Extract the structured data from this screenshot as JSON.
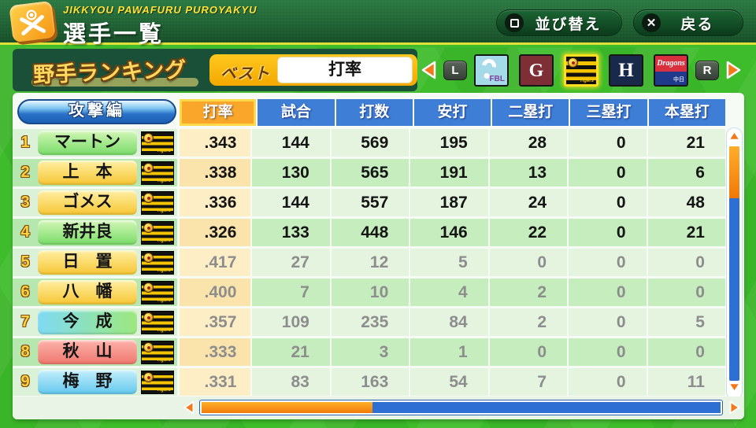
{
  "header": {
    "subtitle": "JIKKYOU PAWAFURU PUROYAKYU",
    "title": "選手一覧",
    "sort_label": "並び替え",
    "back_label": "戻る"
  },
  "toolbar": {
    "ranking_title": "野手ランキング",
    "best_label": "ベスト",
    "selected_stat": "打率",
    "left_bumper": "L",
    "right_bumper": "R",
    "teams": [
      {
        "id": "fbl",
        "label": "FBL",
        "selected": false
      },
      {
        "id": "giants",
        "label": "G",
        "selected": false
      },
      {
        "id": "tigers",
        "label": "Tigers",
        "selected": true
      },
      {
        "id": "hawks",
        "label": "H",
        "selected": false
      },
      {
        "id": "dragons",
        "label": "Dragons",
        "sub": "中日",
        "selected": false
      }
    ]
  },
  "table": {
    "section_label": "攻撃編",
    "columns": [
      "打率",
      "試合",
      "打数",
      "安打",
      "二塁打",
      "三塁打",
      "本塁打"
    ],
    "selected_column": "打率",
    "rows": [
      {
        "rank": "1",
        "name": "マートン",
        "name_color": "green",
        "qualified": true,
        "stats": [
          ".343",
          "144",
          "569",
          "195",
          "28",
          "0",
          "21"
        ]
      },
      {
        "rank": "2",
        "name": "上　本",
        "name_color": "yellow",
        "qualified": true,
        "stats": [
          ".338",
          "130",
          "565",
          "191",
          "13",
          "0",
          "6"
        ]
      },
      {
        "rank": "3",
        "name": "ゴメス",
        "name_color": "yellow",
        "qualified": true,
        "stats": [
          ".336",
          "144",
          "557",
          "187",
          "24",
          "0",
          "48"
        ]
      },
      {
        "rank": "4",
        "name": "新井良",
        "name_color": "green",
        "qualified": true,
        "stats": [
          ".326",
          "133",
          "448",
          "146",
          "22",
          "0",
          "21"
        ]
      },
      {
        "rank": "5",
        "name": "日　置",
        "name_color": "yellow",
        "qualified": false,
        "stats": [
          ".417",
          "27",
          "12",
          "5",
          "0",
          "0",
          "0"
        ]
      },
      {
        "rank": "6",
        "name": "八　幡",
        "name_color": "yellow",
        "qualified": false,
        "stats": [
          ".400",
          "7",
          "10",
          "4",
          "2",
          "0",
          "0"
        ]
      },
      {
        "rank": "7",
        "name": "今　成",
        "name_color": "cyangreen",
        "qualified": false,
        "stats": [
          ".357",
          "109",
          "235",
          "84",
          "2",
          "0",
          "5"
        ]
      },
      {
        "rank": "8",
        "name": "秋　山",
        "name_color": "red",
        "qualified": false,
        "stats": [
          ".333",
          "21",
          "3",
          "1",
          "0",
          "0",
          "0"
        ]
      },
      {
        "rank": "9",
        "name": "梅　野",
        "name_color": "cyan",
        "qualified": false,
        "stats": [
          ".331",
          "83",
          "163",
          "54",
          "7",
          "0",
          "11"
        ]
      }
    ]
  },
  "scrollbars": {
    "vertical_fill_pct": 22,
    "horizontal_fill_pct": 33
  },
  "colors": {
    "accent_orange": "#f9a62a",
    "header_blue": "#3e7ed6",
    "bg_green": "#3ebc2b",
    "panel_dark_green": "#1b5038"
  }
}
